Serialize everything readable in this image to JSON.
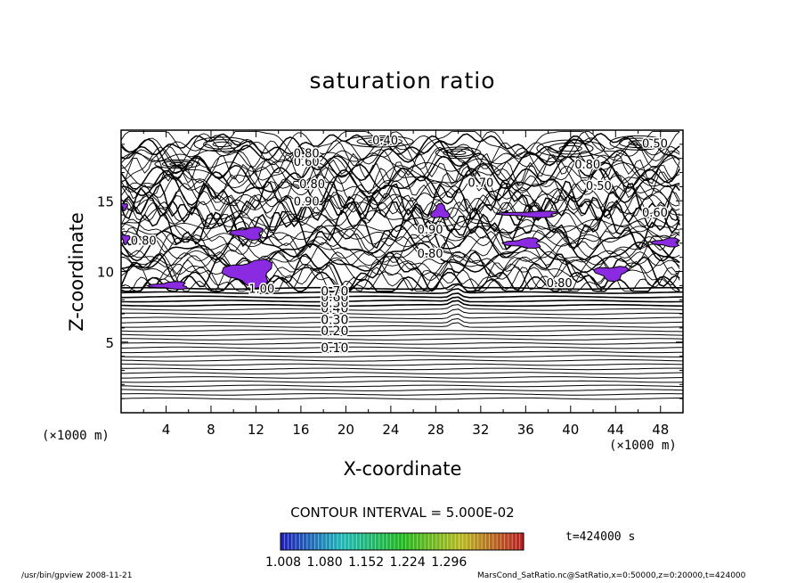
{
  "chart_data": {
    "type": "contour",
    "title": "saturation ratio",
    "xlabel": "X-coordinate",
    "ylabel": "Z-coordinate",
    "x_unit": "(×1000 m)",
    "y_unit": "(×1000 m)",
    "xlim": [
      0,
      50
    ],
    "ylim": [
      0,
      20
    ],
    "x_ticks": [
      "4",
      "8",
      "12",
      "16",
      "20",
      "24",
      "28",
      "32",
      "36",
      "40",
      "44",
      "48"
    ],
    "y_ticks": [
      "5",
      "10",
      "15"
    ],
    "contour_interval": "CONTOUR INTERVAL = 5.000E-02",
    "contour_levels": [
      {
        "label": "0.10",
        "z": 4.6
      },
      {
        "label": "0.20",
        "z": 5.8
      },
      {
        "label": "0.30",
        "z": 6.6
      },
      {
        "label": "0.40",
        "z": 7.4
      },
      {
        "label": "0.50",
        "z": 7.8
      },
      {
        "label": "0.60",
        "z": 8.2
      },
      {
        "label": "0.70",
        "z": 8.6
      }
    ],
    "upper_labels": [
      {
        "label": "0.40",
        "x": 23.5,
        "z": 19.3
      },
      {
        "label": "0.50",
        "x": 47.5,
        "z": 19.1
      },
      {
        "label": "0.60",
        "x": 16.5,
        "z": 17.8
      },
      {
        "label": "0.80",
        "x": 16.5,
        "z": 18.4
      },
      {
        "label": "0.80",
        "x": 17.0,
        "z": 16.2
      },
      {
        "label": "0.90",
        "x": 16.5,
        "z": 15.0
      },
      {
        "label": "0.70",
        "x": 32.0,
        "z": 16.3
      },
      {
        "label": "0.80",
        "x": 41.5,
        "z": 17.6
      },
      {
        "label": "0.50",
        "x": 42.5,
        "z": 16.1
      },
      {
        "label": "0.90",
        "x": 27.5,
        "z": 13.0
      },
      {
        "label": "0.80",
        "x": 27.5,
        "z": 11.3
      },
      {
        "label": "0.60",
        "x": 47.5,
        "z": 14.2
      },
      {
        "label": "0.80",
        "x": 2.0,
        "z": 12.2
      },
      {
        "label": "1.00",
        "x": 12.5,
        "z": 8.8
      },
      {
        "label": "0.80",
        "x": 39.0,
        "z": 9.2
      }
    ],
    "supersaturated_regions": [
      {
        "x": [
          0,
          0.8
        ],
        "z": [
          11.9,
          12.7
        ]
      },
      {
        "x": [
          2.4,
          6.4
        ],
        "z": [
          8.7,
          9.3
        ]
      },
      {
        "x": [
          9.0,
          14.0
        ],
        "z": [
          8.8,
          11.0
        ]
      },
      {
        "x": [
          9.7,
          13.0
        ],
        "z": [
          12.2,
          13.2
        ]
      },
      {
        "x": [
          27.5,
          29.3
        ],
        "z": [
          13.6,
          14.8
        ]
      },
      {
        "x": [
          33.5,
          39.6
        ],
        "z": [
          13.8,
          14.3
        ]
      },
      {
        "x": [
          34.0,
          37.8
        ],
        "z": [
          11.6,
          12.4
        ]
      },
      {
        "x": [
          42.0,
          45.3
        ],
        "z": [
          9.3,
          10.5
        ]
      },
      {
        "x": [
          47.2,
          50.0
        ],
        "z": [
          11.7,
          12.4
        ]
      },
      {
        "x": [
          0,
          0.6
        ],
        "z": [
          14.3,
          14.9
        ]
      }
    ],
    "colorbar_labels": [
      "1.008",
      "1.080",
      "1.152",
      "1.224",
      "1.296"
    ],
    "time_label": "t=424000 s"
  },
  "footer": {
    "left": "/usr/bin/gpview   2008-11-21",
    "right": "MarsCond_SatRatio.nc@SatRatio,x=0:50000,z=0:20000,t=424000"
  },
  "colors": {
    "fill": "#8a2be2",
    "line": "#000000",
    "background": "#ffffff"
  }
}
